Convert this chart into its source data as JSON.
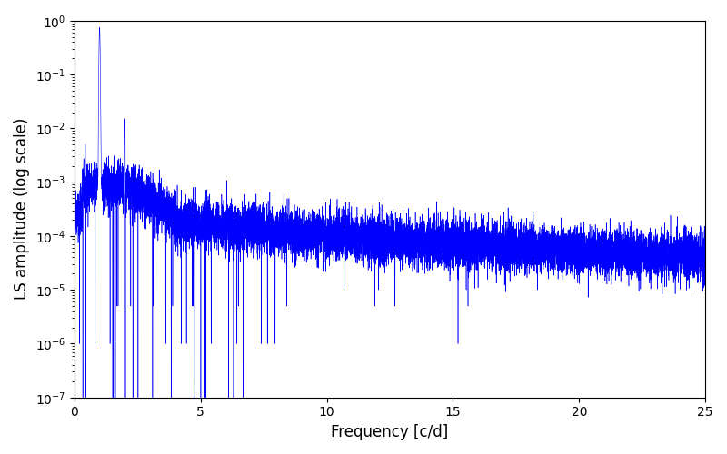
{
  "title": "",
  "xlabel": "Frequency [c/d]",
  "ylabel": "LS amplitude (log scale)",
  "line_color": "#0000FF",
  "xlim": [
    0,
    25
  ],
  "ylim_log": [
    -7,
    0
  ],
  "freq_min": 0.0,
  "freq_max": 25.0,
  "n_points": 12000,
  "background_color": "#ffffff",
  "figsize": [
    8.0,
    5.0
  ],
  "dpi": 100
}
